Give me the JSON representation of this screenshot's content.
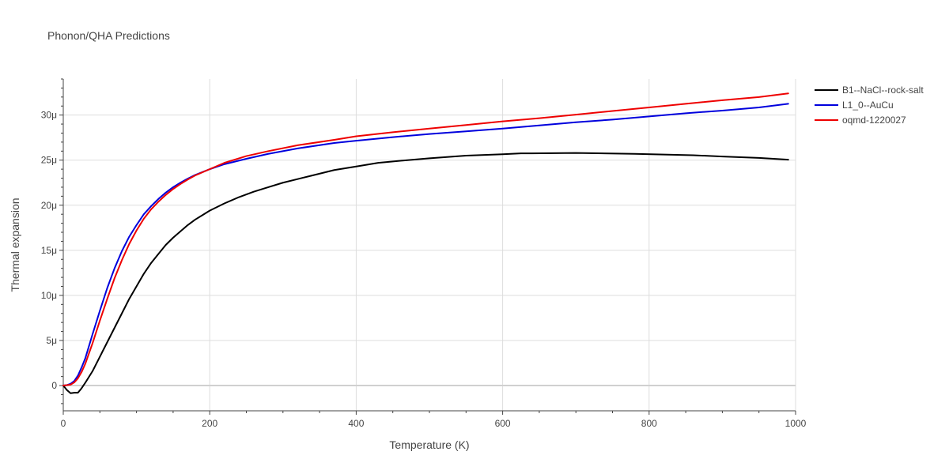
{
  "chart_data": {
    "type": "line",
    "title": "Phonon/QHA Predictions",
    "xlabel": "Temperature (K)",
    "ylabel": "Thermal expansion",
    "xlim": [
      0,
      1000
    ],
    "ylim": [
      -2.8e-06,
      3.4e-05
    ],
    "x_ticks": [
      0,
      200,
      400,
      600,
      800,
      1000
    ],
    "x_tick_labels": [
      "0",
      "200",
      "400",
      "600",
      "800",
      "1000"
    ],
    "y_ticks": [
      0,
      5e-06,
      1e-05,
      1.5e-05,
      2e-05,
      2.5e-05,
      3e-05
    ],
    "y_tick_labels": [
      "0",
      "5μ",
      "10μ",
      "15μ",
      "20μ",
      "25μ",
      "30μ"
    ],
    "grid": true,
    "legend_position": "top-right outside",
    "series": [
      {
        "name": "B1--NaCl--rock-salt",
        "color": "#000000",
        "points": [
          [
            0,
            0
          ],
          [
            5,
            -5e-07
          ],
          [
            10,
            -8.5e-07
          ],
          [
            15,
            -8e-07
          ],
          [
            20,
            -8e-07
          ],
          [
            25,
            -3e-07
          ],
          [
            30,
            3e-07
          ],
          [
            40,
            1.6e-06
          ],
          [
            50,
            3.2e-06
          ],
          [
            60,
            4.8e-06
          ],
          [
            70,
            6.4e-06
          ],
          [
            80,
            8e-06
          ],
          [
            90,
            9.6e-06
          ],
          [
            100,
            1.1e-05
          ],
          [
            110,
            1.24e-05
          ],
          [
            120,
            1.36e-05
          ],
          [
            130,
            1.46e-05
          ],
          [
            140,
            1.56e-05
          ],
          [
            150,
            1.64e-05
          ],
          [
            160,
            1.71e-05
          ],
          [
            170,
            1.78e-05
          ],
          [
            180,
            1.84e-05
          ],
          [
            200,
            1.94e-05
          ],
          [
            220,
            2.02e-05
          ],
          [
            240,
            2.09e-05
          ],
          [
            260,
            2.15e-05
          ],
          [
            280,
            2.2e-05
          ],
          [
            300,
            2.25e-05
          ],
          [
            320,
            2.29e-05
          ],
          [
            340,
            2.33e-05
          ],
          [
            370,
            2.39e-05
          ],
          [
            400,
            2.43e-05
          ],
          [
            430,
            2.47e-05
          ],
          [
            470,
            2.5e-05
          ],
          [
            500,
            2.52e-05
          ],
          [
            550,
            2.55e-05
          ],
          [
            600,
            2.565e-05
          ],
          [
            625,
            2.575e-05
          ],
          [
            640,
            2.575e-05
          ],
          [
            700,
            2.58e-05
          ],
          [
            780,
            2.57e-05
          ],
          [
            860,
            2.555e-05
          ],
          [
            900,
            2.54e-05
          ],
          [
            950,
            2.525e-05
          ],
          [
            990,
            2.505e-05
          ]
        ]
      },
      {
        "name": "L1_0--AuCu",
        "color": "#0000dd",
        "points": [
          [
            0,
            0
          ],
          [
            5,
            5e-08
          ],
          [
            10,
            2e-07
          ],
          [
            15,
            5e-07
          ],
          [
            20,
            1.1e-06
          ],
          [
            25,
            2e-06
          ],
          [
            30,
            3e-06
          ],
          [
            40,
            5.7e-06
          ],
          [
            50,
            8.3e-06
          ],
          [
            60,
            1.08e-05
          ],
          [
            70,
            1.3e-05
          ],
          [
            80,
            1.49e-05
          ],
          [
            90,
            1.65e-05
          ],
          [
            100,
            1.78e-05
          ],
          [
            110,
            1.9e-05
          ],
          [
            120,
            1.99e-05
          ],
          [
            130,
            2.07e-05
          ],
          [
            140,
            2.14e-05
          ],
          [
            150,
            2.2e-05
          ],
          [
            160,
            2.25e-05
          ],
          [
            170,
            2.295e-05
          ],
          [
            180,
            2.335e-05
          ],
          [
            200,
            2.4e-05
          ],
          [
            220,
            2.455e-05
          ],
          [
            250,
            2.515e-05
          ],
          [
            280,
            2.57e-05
          ],
          [
            320,
            2.63e-05
          ],
          [
            370,
            2.69e-05
          ],
          [
            400,
            2.715e-05
          ],
          [
            450,
            2.755e-05
          ],
          [
            500,
            2.79e-05
          ],
          [
            550,
            2.82e-05
          ],
          [
            600,
            2.85e-05
          ],
          [
            650,
            2.885e-05
          ],
          [
            700,
            2.92e-05
          ],
          [
            750,
            2.95e-05
          ],
          [
            800,
            2.985e-05
          ],
          [
            850,
            3.02e-05
          ],
          [
            900,
            3.05e-05
          ],
          [
            950,
            3.085e-05
          ],
          [
            990,
            3.125e-05
          ]
        ]
      },
      {
        "name": "oqmd-1220027",
        "color": "#ee0000",
        "points": [
          [
            0,
            0
          ],
          [
            5,
            5e-08
          ],
          [
            10,
            1e-07
          ],
          [
            15,
            3.5e-07
          ],
          [
            20,
            8e-07
          ],
          [
            25,
            1.5e-06
          ],
          [
            30,
            2.4e-06
          ],
          [
            40,
            4.7e-06
          ],
          [
            50,
            7.2e-06
          ],
          [
            60,
            9.6e-06
          ],
          [
            70,
            1.19e-05
          ],
          [
            80,
            1.39e-05
          ],
          [
            90,
            1.57e-05
          ],
          [
            100,
            1.72e-05
          ],
          [
            110,
            1.85e-05
          ],
          [
            120,
            1.955e-05
          ],
          [
            130,
            2.04e-05
          ],
          [
            140,
            2.115e-05
          ],
          [
            150,
            2.18e-05
          ],
          [
            160,
            2.235e-05
          ],
          [
            170,
            2.285e-05
          ],
          [
            180,
            2.33e-05
          ],
          [
            200,
            2.4e-05
          ],
          [
            220,
            2.47e-05
          ],
          [
            250,
            2.545e-05
          ],
          [
            280,
            2.6e-05
          ],
          [
            320,
            2.665e-05
          ],
          [
            370,
            2.725e-05
          ],
          [
            400,
            2.765e-05
          ],
          [
            450,
            2.81e-05
          ],
          [
            500,
            2.85e-05
          ],
          [
            550,
            2.89e-05
          ],
          [
            600,
            2.93e-05
          ],
          [
            650,
            2.965e-05
          ],
          [
            700,
            3.005e-05
          ],
          [
            750,
            3.045e-05
          ],
          [
            800,
            3.085e-05
          ],
          [
            850,
            3.125e-05
          ],
          [
            900,
            3.165e-05
          ],
          [
            950,
            3.2e-05
          ],
          [
            990,
            3.24e-05
          ]
        ]
      }
    ]
  }
}
